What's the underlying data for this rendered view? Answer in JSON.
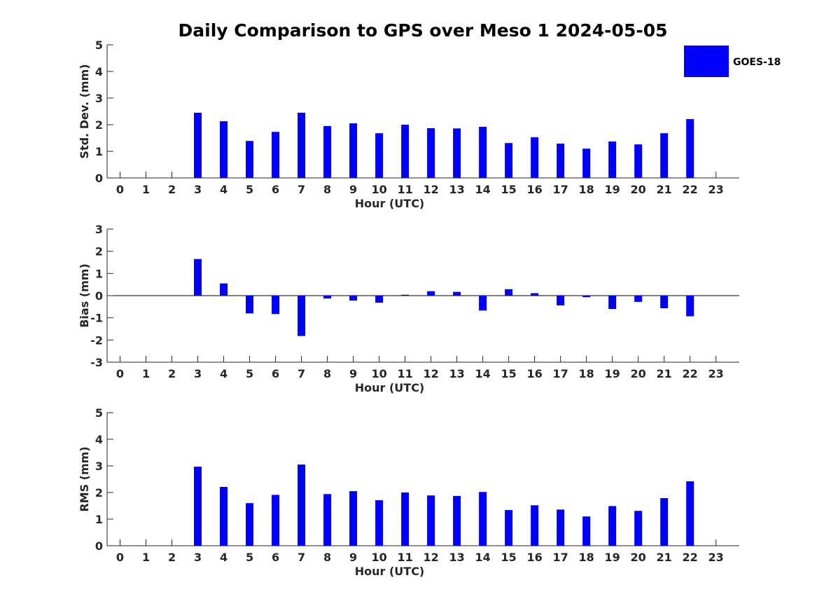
{
  "title": "Daily Comparison to GPS over Meso 1 2024-05-05",
  "colors": {
    "bar": "#0000ff",
    "axis": "#262626",
    "background": "#ffffff"
  },
  "legend": {
    "label": "GOES-18",
    "position": "top-right"
  },
  "chart_data": [
    {
      "type": "bar",
      "name": "std",
      "title": "",
      "xlabel": "Hour (UTC)",
      "ylabel": "Std. Dev. (mm)",
      "ylim": [
        0,
        5
      ],
      "yticks": [
        0,
        1,
        2,
        3,
        4,
        5
      ],
      "xlim": [
        -0.5,
        23.9
      ],
      "categories": [
        "0",
        "1",
        "2",
        "3",
        "4",
        "5",
        "6",
        "7",
        "8",
        "9",
        "10",
        "11",
        "12",
        "13",
        "14",
        "15",
        "16",
        "17",
        "18",
        "19",
        "20",
        "21",
        "22",
        "23"
      ],
      "series": [
        {
          "name": "GOES-18",
          "values": [
            null,
            null,
            null,
            2.45,
            2.13,
            1.39,
            1.73,
            2.45,
            1.95,
            2.05,
            1.68,
            2.0,
            1.87,
            1.86,
            1.92,
            1.31,
            1.53,
            1.29,
            1.1,
            1.37,
            1.26,
            1.68,
            2.21,
            null
          ]
        }
      ]
    },
    {
      "type": "bar",
      "name": "bias",
      "title": "",
      "xlabel": "Hour (UTC)",
      "ylabel": "Bias (mm)",
      "ylim": [
        -3,
        3
      ],
      "yticks": [
        -3,
        -2,
        -1,
        0,
        1,
        2,
        3
      ],
      "xlim": [
        -0.5,
        23.9
      ],
      "categories": [
        "0",
        "1",
        "2",
        "3",
        "4",
        "5",
        "6",
        "7",
        "8",
        "9",
        "10",
        "11",
        "12",
        "13",
        "14",
        "15",
        "16",
        "17",
        "18",
        "19",
        "20",
        "21",
        "22",
        "23"
      ],
      "series": [
        {
          "name": "GOES-18",
          "values": [
            null,
            null,
            null,
            1.65,
            0.55,
            -0.8,
            -0.83,
            -1.82,
            -0.13,
            -0.22,
            -0.32,
            0.04,
            0.2,
            0.17,
            -0.67,
            0.29,
            0.11,
            -0.44,
            -0.07,
            -0.6,
            -0.28,
            -0.57,
            -0.93,
            null
          ]
        }
      ]
    },
    {
      "type": "bar",
      "name": "rms",
      "title": "",
      "xlabel": "Hour (UTC)",
      "ylabel": "RMS (mm)",
      "ylim": [
        0,
        5
      ],
      "yticks": [
        0,
        1,
        2,
        3,
        4,
        5
      ],
      "xlim": [
        -0.5,
        23.9
      ],
      "categories": [
        "0",
        "1",
        "2",
        "3",
        "4",
        "5",
        "6",
        "7",
        "8",
        "9",
        "10",
        "11",
        "12",
        "13",
        "14",
        "15",
        "16",
        "17",
        "18",
        "19",
        "20",
        "21",
        "22",
        "23"
      ],
      "series": [
        {
          "name": "GOES-18",
          "values": [
            null,
            null,
            null,
            2.97,
            2.21,
            1.6,
            1.91,
            3.05,
            1.94,
            2.05,
            1.71,
            2.0,
            1.89,
            1.87,
            2.02,
            1.34,
            1.52,
            1.36,
            1.1,
            1.49,
            1.31,
            1.79,
            2.42,
            null
          ]
        }
      ]
    }
  ]
}
